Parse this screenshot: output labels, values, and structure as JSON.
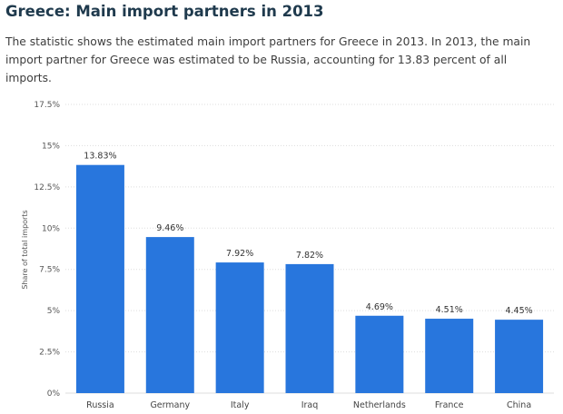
{
  "header": {
    "title": "Greece: Main import partners in 2013",
    "description": "The statistic shows the estimated main import partners for Greece in 2013. In 2013, the main import partner for Greece was estimated to be Russia, accounting for 13.83 percent of all imports."
  },
  "chart_data": {
    "type": "bar",
    "title": "",
    "xlabel": "",
    "ylabel": "Share of total imports",
    "categories": [
      "Russia",
      "Germany",
      "Italy",
      "Iraq",
      "Netherlands",
      "France",
      "China"
    ],
    "values": [
      13.83,
      9.46,
      7.92,
      7.82,
      4.69,
      4.51,
      4.45
    ],
    "value_labels": [
      "13.83%",
      "9.46%",
      "7.92%",
      "7.82%",
      "4.69%",
      "4.51%",
      "4.45%"
    ],
    "ylim": [
      0,
      17.5
    ],
    "yticks": [
      0,
      2.5,
      5,
      7.5,
      10,
      12.5,
      15,
      17.5
    ],
    "ytick_labels": [
      "0%",
      "2.5%",
      "5%",
      "7.5%",
      "10%",
      "12.5%",
      "15%",
      "17.5%"
    ],
    "grid": true,
    "bar_color": "#2876dd",
    "grid_color": "#dddddd"
  }
}
